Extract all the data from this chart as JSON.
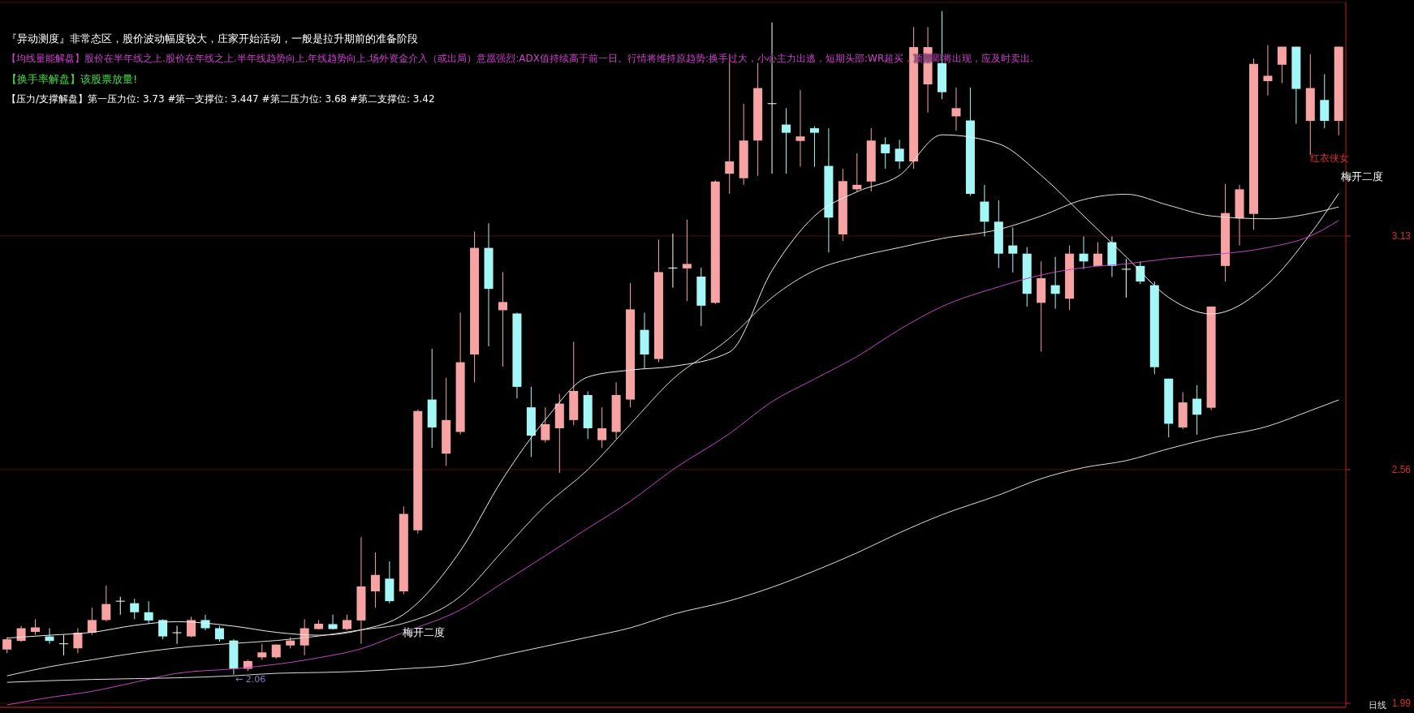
{
  "chart_data": {
    "type": "candlestick",
    "categories": [
      null,
      null,
      null,
      null,
      null,
      null,
      null,
      null,
      null,
      null,
      null,
      null,
      null,
      null,
      null,
      null,
      null,
      null,
      null,
      null,
      null,
      null,
      null,
      null,
      null,
      null,
      null,
      null,
      null,
      null,
      null,
      null,
      null,
      null,
      null,
      null,
      null,
      null,
      null,
      null,
      null,
      null,
      null,
      null,
      null,
      null,
      null,
      null,
      null,
      null,
      null,
      null,
      null,
      null,
      null,
      null,
      null,
      null,
      null,
      null,
      null,
      null,
      null,
      null,
      null,
      null,
      null,
      null,
      null,
      null,
      null,
      null,
      null,
      null,
      null,
      null,
      null,
      null,
      null,
      null,
      null,
      null,
      null,
      null,
      null,
      null,
      null,
      null,
      null,
      null,
      null,
      null,
      null,
      null,
      null
    ],
    "ohlc": [
      [
        2.121,
        2.151,
        2.112,
        2.146
      ],
      [
        2.142,
        2.179,
        2.14,
        2.173
      ],
      [
        2.164,
        2.195,
        2.157,
        2.175
      ],
      [
        2.153,
        2.173,
        2.135,
        2.142
      ],
      [
        2.135,
        2.157,
        2.107,
        2.135
      ],
      [
        2.124,
        2.173,
        2.112,
        2.162
      ],
      [
        2.162,
        2.223,
        2.157,
        2.193
      ],
      [
        2.193,
        2.277,
        2.19,
        2.232
      ],
      [
        2.239,
        2.25,
        2.206,
        2.239
      ],
      [
        2.234,
        2.245,
        2.195,
        2.212
      ],
      [
        2.212,
        2.239,
        2.184,
        2.192
      ],
      [
        2.193,
        2.195,
        2.146,
        2.153
      ],
      [
        2.162,
        2.179,
        2.135,
        2.162
      ],
      [
        2.153,
        2.201,
        2.151,
        2.193
      ],
      [
        2.193,
        2.206,
        2.168,
        2.173
      ],
      [
        2.173,
        2.179,
        2.14,
        2.146
      ],
      [
        2.143,
        2.146,
        2.06,
        2.074
      ],
      [
        2.074,
        2.096,
        2.069,
        2.093
      ],
      [
        2.102,
        2.135,
        2.096,
        2.114
      ],
      [
        2.102,
        2.134,
        2.099,
        2.133
      ],
      [
        2.131,
        2.151,
        2.124,
        2.143
      ],
      [
        2.131,
        2.195,
        2.107,
        2.173
      ],
      [
        2.171,
        2.193,
        2.17,
        2.184
      ],
      [
        2.183,
        2.206,
        2.17,
        2.171
      ],
      [
        2.171,
        2.206,
        2.168,
        2.193
      ],
      [
        2.192,
        2.395,
        2.135,
        2.275
      ],
      [
        2.263,
        2.358,
        2.223,
        2.303
      ],
      [
        2.294,
        2.336,
        2.234,
        2.239
      ],
      [
        2.263,
        2.47,
        2.256,
        2.452
      ],
      [
        2.412,
        2.707,
        2.404,
        2.703
      ],
      [
        2.731,
        2.855,
        2.613,
        2.663
      ],
      [
        2.599,
        2.784,
        2.569,
        2.681
      ],
      [
        2.652,
        2.943,
        2.646,
        2.822
      ],
      [
        2.841,
        3.141,
        2.773,
        3.101
      ],
      [
        3.101,
        3.161,
        2.861,
        3.001
      ],
      [
        2.949,
        3.042,
        2.811,
        2.969
      ],
      [
        2.941,
        2.943,
        2.734,
        2.762
      ],
      [
        2.712,
        2.762,
        2.591,
        2.643
      ],
      [
        2.632,
        2.712,
        2.626,
        2.671
      ],
      [
        2.661,
        2.745,
        2.552,
        2.721
      ],
      [
        2.681,
        2.872,
        2.668,
        2.752
      ],
      [
        2.742,
        2.751,
        2.635,
        2.661
      ],
      [
        2.632,
        2.712,
        2.613,
        2.661
      ],
      [
        2.652,
        2.773,
        2.635,
        2.742
      ],
      [
        2.731,
        3.015,
        2.712,
        2.951
      ],
      [
        2.901,
        2.943,
        2.806,
        2.841
      ],
      [
        2.83,
        3.121,
        2.822,
        3.042
      ],
      [
        3.052,
        3.136,
        3.004,
        3.052
      ],
      [
        3.051,
        3.17,
        2.971,
        3.062
      ],
      [
        3.031,
        3.053,
        2.91,
        2.96
      ],
      [
        2.967,
        3.266,
        2.964,
        3.263
      ],
      [
        3.282,
        3.574,
        3.233,
        3.312
      ],
      [
        3.271,
        3.453,
        3.255,
        3.363
      ],
      [
        3.363,
        3.552,
        3.277,
        3.491
      ],
      [
        3.453,
        3.651,
        3.282,
        3.453
      ],
      [
        3.402,
        3.442,
        3.282,
        3.382
      ],
      [
        3.362,
        3.486,
        3.299,
        3.373
      ],
      [
        3.393,
        3.398,
        3.299,
        3.382
      ],
      [
        3.301,
        3.393,
        3.09,
        3.175
      ],
      [
        3.134,
        3.294,
        3.118,
        3.264
      ],
      [
        3.244,
        3.332,
        3.239,
        3.255
      ],
      [
        3.263,
        3.393,
        3.239,
        3.363
      ],
      [
        3.354,
        3.371,
        3.294,
        3.332
      ],
      [
        3.343,
        3.365,
        3.294,
        3.312
      ],
      [
        3.312,
        3.64,
        3.294,
        3.591
      ],
      [
        3.5,
        3.64,
        3.431,
        3.591
      ],
      [
        3.552,
        3.679,
        3.464,
        3.481
      ],
      [
        3.422,
        3.492,
        3.387,
        3.442
      ],
      [
        3.412,
        3.492,
        3.228,
        3.233
      ],
      [
        3.214,
        3.255,
        3.129,
        3.165
      ],
      [
        3.165,
        3.217,
        3.052,
        3.087
      ],
      [
        3.107,
        3.151,
        3.041,
        3.087
      ],
      [
        3.087,
        3.103,
        2.958,
        2.989
      ],
      [
        2.967,
        3.068,
        2.848,
        3.027
      ],
      [
        3.01,
        3.079,
        2.953,
        2.989
      ],
      [
        2.977,
        3.107,
        2.949,
        3.087
      ],
      [
        3.087,
        3.129,
        3.049,
        3.068
      ],
      [
        3.057,
        3.115,
        3.057,
        3.087
      ],
      [
        3.115,
        3.129,
        3.03,
        3.057
      ],
      [
        3.049,
        3.074,
        2.98,
        3.049
      ],
      [
        3.057,
        3.068,
        3.013,
        3.019
      ],
      [
        3.01,
        3.019,
        2.793,
        2.81
      ],
      [
        2.782,
        2.782,
        2.639,
        2.672
      ],
      [
        2.663,
        2.749,
        2.659,
        2.724
      ],
      [
        2.733,
        2.766,
        2.645,
        2.694
      ],
      [
        2.711,
        2.958,
        2.705,
        2.958
      ],
      [
        3.057,
        3.257,
        3.019,
        3.186
      ],
      [
        3.173,
        3.255,
        3.107,
        3.244
      ],
      [
        3.184,
        3.563,
        3.145,
        3.55
      ],
      [
        3.508,
        3.596,
        3.473,
        3.521
      ],
      [
        3.548,
        3.592,
        3.503,
        3.592
      ],
      [
        3.592,
        3.592,
        3.404,
        3.489
      ],
      [
        3.411,
        3.574,
        3.327,
        3.491
      ],
      [
        3.462,
        3.525,
        3.393,
        3.411
      ],
      [
        3.411,
        3.592,
        3.376,
        3.592
      ]
    ],
    "colors": [
      "#f7a3a3",
      "#f7a3a3",
      "#f7a3a3",
      "#a3f7f7",
      "#ffffff",
      "#f7a3a3",
      "#f7a3a3",
      "#f7a3a3",
      "#ffffff",
      "#a3f7f7",
      "#a3f7f7",
      "#a3f7f7",
      "#ffffff",
      "#f7a3a3",
      "#a3f7f7",
      "#a3f7f7",
      "#a3f7f7",
      "#f7a3a3",
      "#f7a3a3",
      "#f7a3a3",
      "#f7a3a3",
      "#f7a3a3",
      "#f7a3a3",
      "#a3f7f7",
      "#f7a3a3",
      "#f7a3a3",
      "#f7a3a3",
      "#a3f7f7",
      "#f7a3a3",
      "#f7a3a3",
      "#a3f7f7",
      "#f7a3a3",
      "#f7a3a3",
      "#f7a3a3",
      "#a3f7f7",
      "#f7a3a3",
      "#a3f7f7",
      "#a3f7f7",
      "#f7a3a3",
      "#f7a3a3",
      "#f7a3a3",
      "#a3f7f7",
      "#f7a3a3",
      "#f7a3a3",
      "#f7a3a3",
      "#a3f7f7",
      "#f7a3a3",
      "#ffffff",
      "#f7a3a3",
      "#a3f7f7",
      "#f7a3a3",
      "#f7a3a3",
      "#f7a3a3",
      "#f7a3a3",
      "#ffffff",
      "#a3f7f7",
      "#f7a3a3",
      "#a3f7f7",
      "#a3f7f7",
      "#f7a3a3",
      "#f7a3a3",
      "#f7a3a3",
      "#a3f7f7",
      "#a3f7f7",
      "#f7a3a3",
      "#f7a3a3",
      "#a3f7f7",
      "#f7a3a3",
      "#a3f7f7",
      "#a3f7f7",
      "#a3f7f7",
      "#a3f7f7",
      "#a3f7f7",
      "#f7a3a3",
      "#a3f7f7",
      "#f7a3a3",
      "#a3f7f7",
      "#f7a3a3",
      "#a3f7f7",
      "#ffffff",
      "#a3f7f7",
      "#a3f7f7",
      "#a3f7f7",
      "#f7a3a3",
      "#a3f7f7",
      "#f7a3a3",
      "#f7a3a3",
      "#f7a3a3",
      "#f7a3a3",
      "#f7a3a3",
      "#f7a3a3",
      "#a3f7f7",
      "#f7a3a3",
      "#a3f7f7",
      "#f7a3a3"
    ],
    "series": [
      {
        "type": "line",
        "color": "#eeeeee",
        "values": [
          2.149,
          null,
          null,
          2.156,
          null,
          null,
          2.163,
          null,
          null,
          2.18,
          null,
          null,
          2.189,
          null,
          null,
          null,
          2.178,
          null,
          null,
          2.163,
          null,
          null,
          2.156,
          null,
          null,
          2.169,
          null,
          null,
          2.207,
          null,
          null,
          null,
          2.362,
          null,
          null,
          2.538,
          null,
          null,
          2.682,
          null,
          null,
          2.786,
          null,
          null,
          2.803,
          null,
          null,
          2.812,
          null,
          null,
          null,
          2.847,
          null,
          null,
          3.046,
          null,
          null,
          3.179,
          null,
          null,
          3.238,
          null,
          null,
          3.278,
          null,
          null,
          3.377,
          null,
          null,
          null,
          3.355,
          null,
          null,
          3.278,
          null,
          null,
          3.179,
          null,
          null,
          3.079,
          null,
          null,
          2.98,
          null,
          null,
          2.94,
          null,
          null,
          null,
          3.013,
          null,
          null,
          3.135,
          null,
          3.234
        ]
      },
      {
        "type": "line",
        "color": "#e0e0d0",
        "values": [
          2.057,
          null,
          null,
          2.079,
          null,
          null,
          2.096,
          null,
          null,
          2.112,
          null,
          null,
          2.125,
          null,
          null,
          null,
          2.136,
          null,
          null,
          2.143,
          null,
          null,
          2.154,
          null,
          null,
          2.169,
          null,
          null,
          2.185,
          null,
          null,
          null,
          2.251,
          null,
          null,
          2.362,
          null,
          null,
          2.472,
          null,
          null,
          2.56,
          null,
          null,
          2.671,
          null,
          null,
          2.781,
          null,
          null,
          null,
          2.881,
          null,
          null,
          2.98,
          null,
          null,
          3.046,
          null,
          null,
          3.079,
          null,
          null,
          3.102,
          null,
          null,
          3.124,
          null,
          null,
          null,
          3.146,
          null,
          null,
          3.179,
          null,
          null,
          3.219,
          null,
          null,
          3.232,
          null,
          null,
          3.205,
          null,
          null,
          3.179,
          null,
          null,
          null,
          3.172,
          null,
          null,
          3.185,
          null,
          3.201
        ]
      },
      {
        "type": "line",
        "color": "#c444c4",
        "values": [
          1.986,
          null,
          null,
          2.004,
          null,
          null,
          2.019,
          null,
          null,
          2.041,
          null,
          null,
          2.063,
          null,
          null,
          null,
          2.074,
          null,
          null,
          2.085,
          null,
          null,
          2.101,
          null,
          null,
          2.123,
          null,
          null,
          2.163,
          null,
          null,
          null,
          2.218,
          null,
          null,
          2.284,
          null,
          null,
          2.35,
          null,
          null,
          2.417,
          null,
          null,
          2.483,
          null,
          null,
          2.56,
          null,
          null,
          null,
          2.648,
          null,
          null,
          2.726,
          null,
          null,
          2.781,
          null,
          null,
          2.836,
          null,
          null,
          2.902,
          null,
          null,
          2.958,
          null,
          null,
          null,
          3.006,
          null,
          null,
          3.035,
          null,
          null,
          3.053,
          null,
          null,
          3.062,
          null,
          null,
          3.075,
          null,
          null,
          3.084,
          null,
          null,
          null,
          3.102,
          null,
          null,
          3.13,
          null,
          3.168
        ]
      },
      {
        "type": "line",
        "color": "#dddddd",
        "values": [
          2.041,
          null,
          null,
          2.045,
          null,
          null,
          2.048,
          null,
          null,
          2.05,
          null,
          null,
          2.052,
          null,
          null,
          null,
          2.057,
          null,
          null,
          2.063,
          null,
          null,
          2.065,
          null,
          null,
          2.068,
          null,
          null,
          2.074,
          null,
          null,
          null,
          2.085,
          null,
          null,
          2.107,
          null,
          null,
          2.129,
          null,
          null,
          2.151,
          null,
          null,
          2.174,
          null,
          null,
          2.207,
          null,
          null,
          null,
          2.24,
          null,
          null,
          2.273,
          null,
          null,
          2.313,
          null,
          null,
          2.357,
          null,
          null,
          2.406,
          null,
          null,
          2.45,
          null,
          null,
          null,
          2.498,
          null,
          null,
          2.538,
          null,
          null,
          2.565,
          null,
          null,
          2.582,
          null,
          null,
          2.611,
          null,
          null,
          2.637,
          null,
          null,
          null,
          2.666,
          null,
          null,
          2.704,
          null,
          2.73
        ]
      }
    ],
    "ylim": [
      1.98,
      3.7
    ],
    "yticks": [
      1.99,
      2.56,
      3.13
    ],
    "grid": "y",
    "annotations": [
      "『异动测度』非常态区，股价波动幅度较大，庄家开始活动，一般是拉升期前的准备阶段",
      "【均线量能解盘】股价在半年线之上.股价在年线之上.半年线趋势向上.年线趋势向上.场外资金介入（或出局）意愿强烈:ADX值持续高于前一日。行情将维持原趋势:换手过大，小心主力出逃，短期头部:WR超买，顶部即将出现，应及时卖出.",
      "【换手率解盘】该股票放量!",
      "【压力/支撑解盘】第一压力位: 3.73 #第一支撑位: 3.447 #第二压力位: 3.68 #第二支撑位: 3.42",
      "梅开二度",
      "梅开二度",
      "红衣侠女",
      "← 2.06",
      "日线"
    ]
  }
}
